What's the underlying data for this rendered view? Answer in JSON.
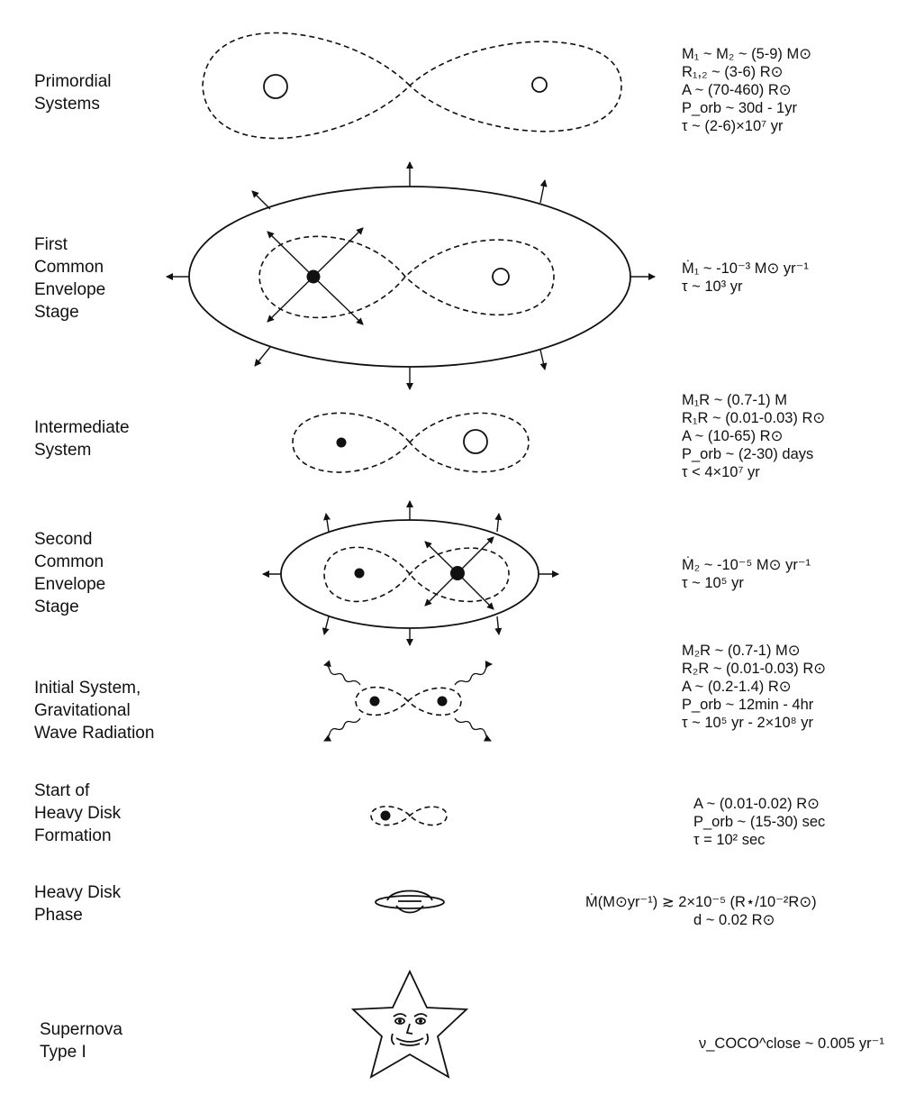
{
  "stages": [
    {
      "label_lines": [
        "Primordial",
        "Systems"
      ],
      "params": [
        "M₁ ~ M₂ ~ (5-9) M⊙",
        "R₁,₂ ~ (3-6) R⊙",
        "A ~ (70-460) R⊙",
        "P_orb ~ 30d - 1yr",
        "τ ~ (2-6)×10⁷ yr"
      ]
    },
    {
      "label_lines": [
        "First",
        "Common",
        "Envelope",
        "Stage"
      ],
      "params": [
        "Ṁ₁ ~ -10⁻³ M⊙ yr⁻¹",
        "τ ~ 10³ yr"
      ]
    },
    {
      "label_lines": [
        "Intermediate",
        "System"
      ],
      "params": [
        "M₁R ~ (0.7-1) M",
        "R₁R ~ (0.01-0.03) R⊙",
        "A ~ (10-65) R⊙",
        "P_orb ~ (2-30) days",
        "τ < 4×10⁷ yr"
      ]
    },
    {
      "label_lines": [
        "Second",
        "Common",
        "Envelope",
        "Stage"
      ],
      "params": [
        "Ṁ₂ ~ -10⁻⁵ M⊙ yr⁻¹",
        "τ ~ 10⁵ yr"
      ]
    },
    {
      "label_lines": [
        "Initial System,",
        "Gravitational",
        "Wave Radiation"
      ],
      "params": [
        "M₂R ~ (0.7-1) M⊙",
        "R₂R ~ (0.01-0.03) R⊙",
        "A ~ (0.2-1.4) R⊙",
        "P_orb ~ 12min - 4hr",
        "τ ~ 10⁵ yr - 2×10⁸ yr"
      ]
    },
    {
      "label_lines": [
        "Start of",
        "Heavy Disk",
        "Formation"
      ],
      "params": [
        "A ~ (0.01-0.02) R⊙",
        "P_orb ~ (15-30) sec",
        "τ = 10² sec"
      ]
    },
    {
      "label_lines": [
        "Heavy Disk",
        "Phase"
      ],
      "params": [
        "Ṁ(M⊙yr⁻¹) ≳ 2×10⁻⁵ (R⋆/10⁻²R⊙)",
        "d ~ 0.02 R⊙"
      ]
    },
    {
      "label_lines": [
        "Supernova",
        "Type I"
      ],
      "params": [
        "ν_COCO^close ~ 0.005 yr⁻¹"
      ]
    }
  ],
  "icons": {
    "primordial": "dashed-figure-eight-two-open-stars",
    "first_envelope": "solid-ellipse-envelope-with-arrows",
    "intermediate": "dashed-figure-eight-dwarf-and-star",
    "second_envelope": "small-ellipse-envelope-with-arrows",
    "gw_system": "figure-eight-with-wavy-radiation",
    "heavy_disk_start": "tiny-figure-eight",
    "heavy_disk": "saucer-disk",
    "supernova": "star-with-face"
  }
}
